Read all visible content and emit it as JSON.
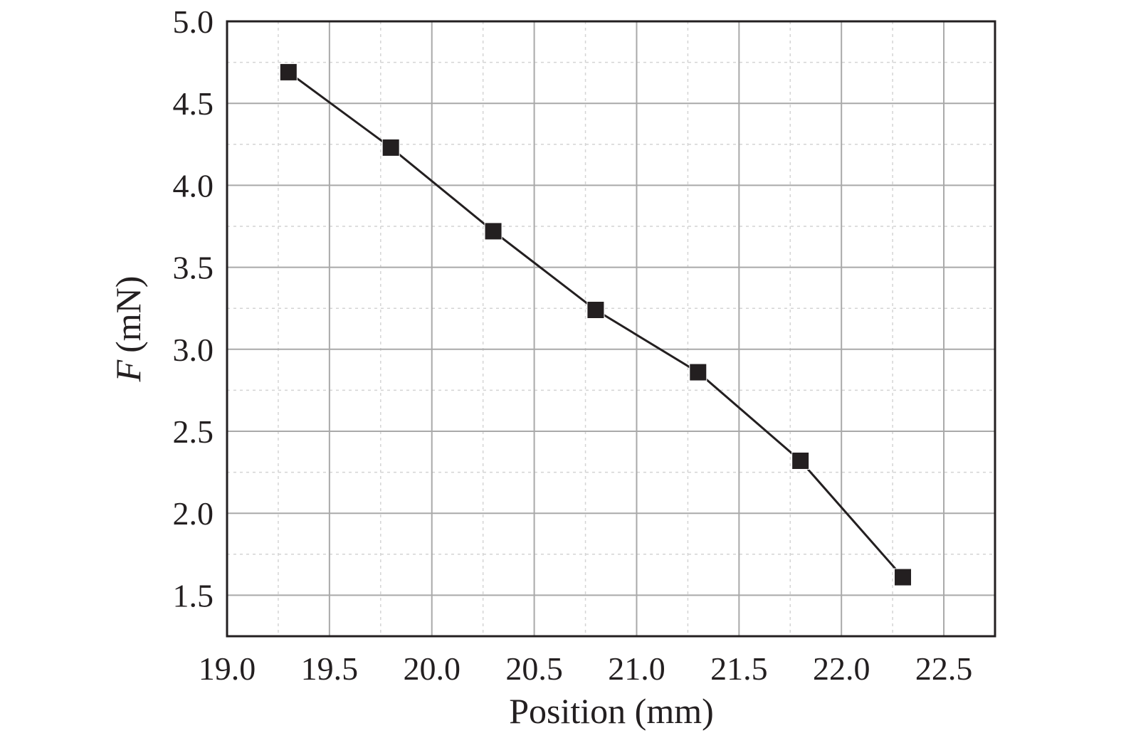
{
  "chart_data": {
    "type": "line",
    "xlabel": "Position (mm)",
    "ylabel_symbol": "F",
    "ylabel_unit": "(mN)",
    "xlim": [
      19.0,
      22.75
    ],
    "ylim": [
      1.25,
      5.0
    ],
    "x_ticks": [
      "19.0",
      "19.5",
      "20.0",
      "20.5",
      "21.0",
      "21.5",
      "22.0",
      "22.5"
    ],
    "y_ticks": [
      "5.0",
      "4.5",
      "4.0",
      "3.5",
      "3.0",
      "2.5",
      "2.0",
      "1.5"
    ],
    "grid": "major solid, minor dashed",
    "marker": "filled-square",
    "color": "#231f20",
    "series": [
      {
        "x": [
          19.3,
          19.8,
          20.3,
          20.8,
          21.3,
          21.8,
          22.3
        ],
        "y": [
          4.69,
          4.23,
          3.72,
          3.24,
          2.86,
          2.32,
          1.61
        ]
      }
    ]
  }
}
